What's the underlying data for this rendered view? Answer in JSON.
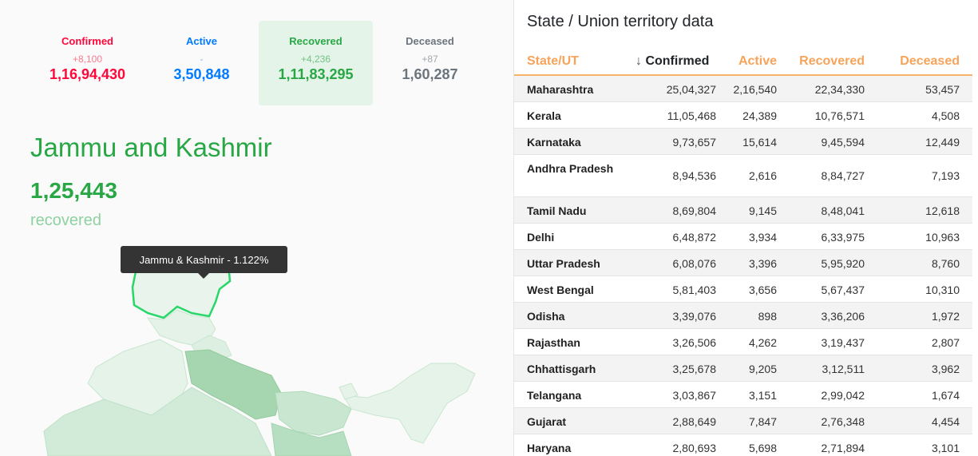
{
  "stats": [
    {
      "label": "Confirmed",
      "delta": "+8,100",
      "total": "1,16,94,430"
    },
    {
      "label": "Active",
      "delta": "-",
      "total": "3,50,848"
    },
    {
      "label": "Recovered",
      "delta": "+4,236",
      "total": "1,11,83,295"
    },
    {
      "label": "Deceased",
      "delta": "+87",
      "total": "1,60,287"
    }
  ],
  "selected_state": {
    "name": "Jammu and Kashmir",
    "count": "1,25,443",
    "metric": "recovered"
  },
  "tooltip": "Jammu & Kashmir - 1.122%",
  "table": {
    "title": "State / Union territory data",
    "headers": {
      "state": "State/UT",
      "sort_arrow": "↓",
      "confirmed": "Confirmed",
      "active": "Active",
      "recovered": "Recovered",
      "deceased": "Deceased"
    },
    "rows": [
      {
        "state": "Maharashtra",
        "confirmed": "25,04,327",
        "active": "2,16,540",
        "recovered": "22,34,330",
        "deceased": "53,457"
      },
      {
        "state": "Kerala",
        "confirmed": "11,05,468",
        "active": "24,389",
        "recovered": "10,76,571",
        "deceased": "4,508"
      },
      {
        "state": "Karnataka",
        "confirmed": "9,73,657",
        "active": "15,614",
        "recovered": "9,45,594",
        "deceased": "12,449"
      },
      {
        "state": "Andhra Pradesh",
        "confirmed": "8,94,536",
        "active": "2,616",
        "recovered": "8,84,727",
        "deceased": "7,193"
      },
      {
        "state": "Tamil Nadu",
        "confirmed": "8,69,804",
        "active": "9,145",
        "recovered": "8,48,041",
        "deceased": "12,618"
      },
      {
        "state": "Delhi",
        "confirmed": "6,48,872",
        "active": "3,934",
        "recovered": "6,33,975",
        "deceased": "10,963"
      },
      {
        "state": "Uttar Pradesh",
        "confirmed": "6,08,076",
        "active": "3,396",
        "recovered": "5,95,920",
        "deceased": "8,760"
      },
      {
        "state": "West Bengal",
        "confirmed": "5,81,403",
        "active": "3,656",
        "recovered": "5,67,437",
        "deceased": "10,310"
      },
      {
        "state": "Odisha",
        "confirmed": "3,39,076",
        "active": "898",
        "recovered": "3,36,206",
        "deceased": "1,972"
      },
      {
        "state": "Rajasthan",
        "confirmed": "3,26,506",
        "active": "4,262",
        "recovered": "3,19,437",
        "deceased": "2,807"
      },
      {
        "state": "Chhattisgarh",
        "confirmed": "3,25,678",
        "active": "9,205",
        "recovered": "3,12,511",
        "deceased": "3,962"
      },
      {
        "state": "Telangana",
        "confirmed": "3,03,867",
        "active": "3,151",
        "recovered": "2,99,042",
        "deceased": "1,674"
      },
      {
        "state": "Gujarat",
        "confirmed": "2,88,649",
        "active": "7,847",
        "recovered": "2,76,348",
        "deceased": "4,454"
      },
      {
        "state": "Haryana",
        "confirmed": "2,80,693",
        "active": "5,698",
        "recovered": "2,71,894",
        "deceased": "3,101"
      }
    ]
  },
  "colors": {
    "confirmed": "#ff073a",
    "active": "#007bff",
    "recovered": "#28a745",
    "deceased": "#6c757d",
    "header_accent": "#f7a35a"
  }
}
